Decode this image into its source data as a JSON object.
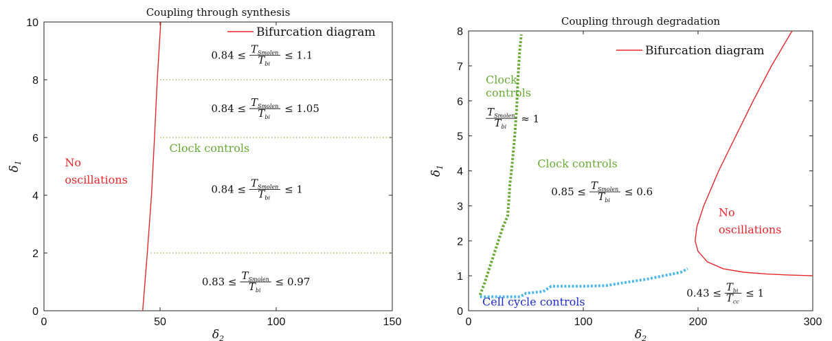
{
  "chart_data": [
    {
      "type": "line",
      "title": "Coupling through synthesis",
      "xlabel": "δ2",
      "ylabel": "δ1",
      "xlim": [
        0,
        150
      ],
      "ylim": [
        0,
        10
      ],
      "xticks": [
        0,
        50,
        100,
        150
      ],
      "yticks": [
        0,
        2,
        4,
        6,
        8,
        10
      ],
      "legend": {
        "position": "top-right",
        "entries": [
          "Bifurcation diagram"
        ]
      },
      "series": [
        {
          "name": "Bifurcation diagram",
          "color": "#e8262b",
          "style": "solid",
          "points": [
            [
              42.5,
              0
            ],
            [
              44.5,
              2
            ],
            [
              46.3,
              4
            ],
            [
              47.6,
              6
            ],
            [
              48.8,
              8
            ],
            [
              50.3,
              10
            ]
          ]
        }
      ],
      "reference_lines": [
        {
          "y": 2,
          "x_from": 46,
          "x_to": 150,
          "style": "dotted",
          "color": "#9aa84a"
        },
        {
          "y": 6,
          "x_from": 50,
          "x_to": 150,
          "style": "dotted",
          "color": "#9aa84a"
        },
        {
          "y": 8,
          "x_from": 50,
          "x_to": 150,
          "style": "dotted",
          "color": "#9aa84a"
        }
      ],
      "annotations": [
        {
          "id": "no_osc",
          "lines": [
            "No",
            "oscillations"
          ],
          "color": "#e8262b",
          "x": 9,
          "y": 5.0
        },
        {
          "id": "clock",
          "text": "Clock controls",
          "color": "#6aaa36",
          "x": 54,
          "y": 5.5
        },
        {
          "id": "r1",
          "lo": "0.84",
          "hi": "1.1",
          "num": "T",
          "num_sub": "Smolen",
          "den": "T",
          "den_sub": "bi",
          "x": 72,
          "y": 8.85
        },
        {
          "id": "r2",
          "lo": "0.84",
          "hi": "1.05",
          "num": "T",
          "num_sub": "Smolen",
          "den": "T",
          "den_sub": "bi",
          "x": 72,
          "y": 7.0
        },
        {
          "id": "r3",
          "lo": "0.84",
          "hi": "1",
          "num": "T",
          "num_sub": "Smolen",
          "den": "T",
          "den_sub": "bi",
          "x": 72,
          "y": 4.2
        },
        {
          "id": "r4",
          "lo": "0.83",
          "hi": "0.97",
          "num": "T",
          "num_sub": "Smolen",
          "den": "T",
          "den_sub": "bi",
          "x": 68,
          "y": 1.0
        }
      ]
    },
    {
      "type": "line",
      "title": "Coupling through degradation",
      "xlabel": "δ2",
      "ylabel": "δ1",
      "xlim": [
        0,
        300
      ],
      "ylim": [
        0,
        8
      ],
      "xticks": [
        0,
        100,
        200,
        300
      ],
      "yticks": [
        0,
        1,
        2,
        3,
        4,
        5,
        6,
        7,
        8
      ],
      "legend": {
        "position": "top-right",
        "entries": [
          "Bifurcation diagram"
        ]
      },
      "series": [
        {
          "name": "Bifurcation diagram",
          "color": "#e8262b",
          "style": "solid",
          "points": [
            [
              300,
              1.0
            ],
            [
              280,
              1.02
            ],
            [
              260,
              1.05
            ],
            [
              240,
              1.1
            ],
            [
              222,
              1.2
            ],
            [
              208,
              1.4
            ],
            [
              200,
              1.7
            ],
            [
              197.5,
              2.0
            ],
            [
              199,
              2.4
            ],
            [
              205,
              3.0
            ],
            [
              218,
              4.0
            ],
            [
              233,
              5.0
            ],
            [
              248,
              6.0
            ],
            [
              264,
              7.0
            ],
            [
              282,
              8.0
            ]
          ]
        },
        {
          "color": "#6aaa36",
          "style": "dotted",
          "points": [
            [
              10,
              0.45
            ],
            [
              14,
              0.8
            ],
            [
              18,
              1.2
            ],
            [
              22,
              1.6
            ],
            [
              26,
              2.0
            ],
            [
              30,
              2.4
            ],
            [
              34,
              2.7
            ],
            [
              35,
              3.1
            ],
            [
              36,
              3.6
            ],
            [
              38,
              4.2
            ],
            [
              40,
              4.9
            ],
            [
              42,
              5.8
            ],
            [
              43,
              6.6
            ],
            [
              44.5,
              7.4
            ],
            [
              46,
              7.9
            ]
          ]
        },
        {
          "color": "#4fb8e6",
          "style": "dotted",
          "points": [
            [
              10,
              0.4
            ],
            [
              30,
              0.4
            ],
            [
              45,
              0.4
            ],
            [
              50,
              0.5
            ],
            [
              65,
              0.55
            ],
            [
              72,
              0.7
            ],
            [
              100,
              0.7
            ],
            [
              120,
              0.72
            ],
            [
              135,
              0.8
            ],
            [
              155,
              0.9
            ],
            [
              170,
              1.0
            ],
            [
              185,
              1.1
            ],
            [
              191,
              1.2
            ]
          ]
        }
      ],
      "annotations": [
        {
          "id": "clock_top",
          "lines": [
            "Clock",
            "controls"
          ],
          "color": "#6aaa36",
          "x": 15,
          "y": 6.5
        },
        {
          "id": "approx",
          "num": "T",
          "num_sub": "Smolen",
          "den": "T",
          "den_sub": "bi",
          "text": "≈ 1",
          "x": 15,
          "y": 5.5
        },
        {
          "id": "clock_mid",
          "text": "Clock controls",
          "color": "#6aaa36",
          "x": 60,
          "y": 4.1
        },
        {
          "id": "range1",
          "lo": "0.85",
          "hi": "0.6",
          "num": "T",
          "num_sub": "Smolen",
          "den": "T",
          "den_sub": "bi",
          "x": 72,
          "y": 3.4
        },
        {
          "id": "no_osc",
          "lines": [
            "No",
            "oscillations"
          ],
          "color": "#e8262b",
          "x": 218,
          "y": 2.7
        },
        {
          "id": "range2",
          "lo": "0.43",
          "hi": "1",
          "num": "T",
          "num_sub": "bi",
          "den": "T",
          "den_sub": "cc",
          "x": 190,
          "y": 0.5
        },
        {
          "id": "cell",
          "text": "Cell cycle controls",
          "color": "#1f2bd6",
          "x": 12,
          "y": 0.15
        }
      ]
    }
  ]
}
